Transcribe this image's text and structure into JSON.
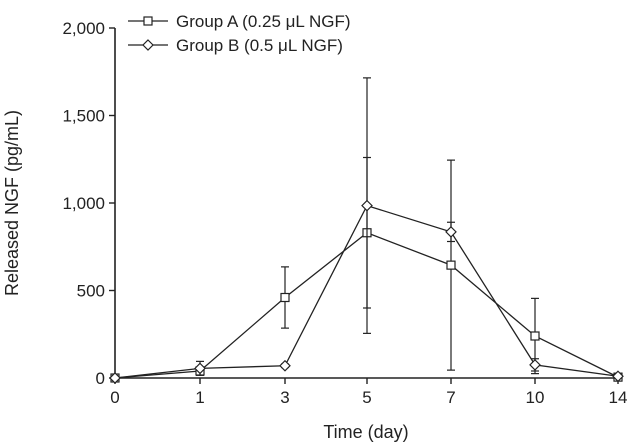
{
  "chart_data": {
    "type": "line",
    "title": "",
    "xlabel": "Time (day)",
    "ylabel": "Released NGF (pg/mL)",
    "x": [
      0,
      1,
      3,
      5,
      7,
      10,
      14
    ],
    "x_tick_labels": [
      "0",
      "1",
      "3",
      "5",
      "7",
      "10",
      "14"
    ],
    "ylim": [
      0,
      2000
    ],
    "y_ticks": [
      0,
      500,
      1000,
      1500,
      2000
    ],
    "y_tick_labels": [
      "0",
      "500",
      "1,000",
      "1,500",
      "2,000"
    ],
    "grid": false,
    "legend_position": "top-left",
    "series": [
      {
        "name": "Group A (0.25 μL NGF)",
        "marker": "square",
        "values": [
          0,
          40,
          460,
          830,
          645,
          240,
          5
        ],
        "error": [
          0,
          20,
          175,
          430,
          600,
          215,
          5
        ]
      },
      {
        "name": "Group B (0.5 μL NGF)",
        "marker": "diamond",
        "values": [
          0,
          55,
          70,
          985,
          835,
          75,
          10
        ],
        "error": [
          0,
          40,
          10,
          730,
          55,
          35,
          5
        ]
      }
    ]
  }
}
